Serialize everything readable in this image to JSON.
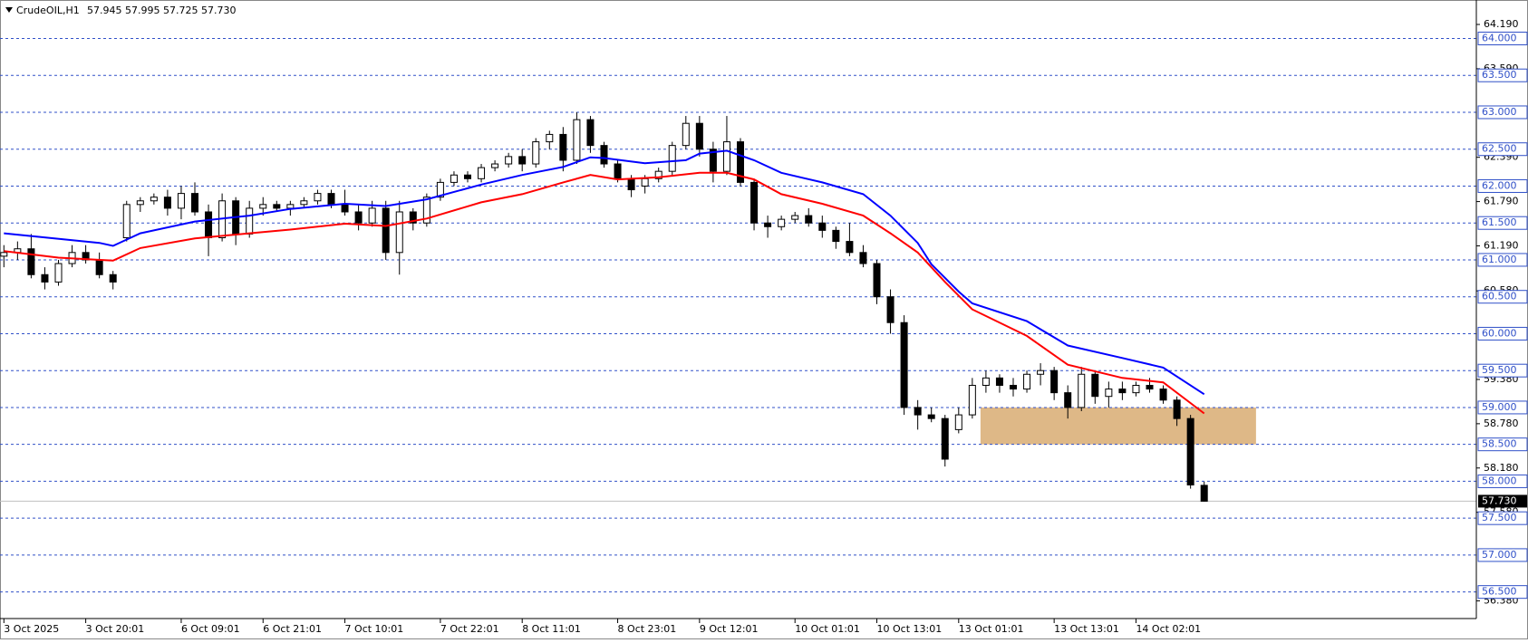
{
  "chart_data": {
    "type": "candlestick",
    "title": "CrudeOIL,H1",
    "info": "57.945 57.995 57.725 57.730",
    "ylim": [
      56.14,
      64.46
    ],
    "yticks": [
      {
        "value": 64.19,
        "label": "64.190"
      },
      {
        "value": 63.59,
        "label": "63.590"
      },
      {
        "value": 62.39,
        "label": "62.390"
      },
      {
        "value": 61.79,
        "label": "61.790"
      },
      {
        "value": 61.19,
        "label": "61.190"
      },
      {
        "value": 60.58,
        "label": "60.580"
      },
      {
        "value": 59.38,
        "label": "59.380"
      },
      {
        "value": 58.78,
        "label": "58.780"
      },
      {
        "value": 58.18,
        "label": "58.180"
      },
      {
        "value": 57.58,
        "label": "57.580"
      },
      {
        "value": 56.38,
        "label": "56.380"
      }
    ],
    "hlines": [
      {
        "value": 64,
        "label": "64.000"
      },
      {
        "value": 63.5,
        "label": "63.500"
      },
      {
        "value": 63,
        "label": "63.000"
      },
      {
        "value": 62.5,
        "label": "62.500"
      },
      {
        "value": 62,
        "label": "62.000"
      },
      {
        "value": 61.5,
        "label": "61.500"
      },
      {
        "value": 61,
        "label": "61.000"
      },
      {
        "value": 60.5,
        "label": "60.500"
      },
      {
        "value": 60,
        "label": "60.000"
      },
      {
        "value": 59.5,
        "label": "59.500"
      },
      {
        "value": 59,
        "label": "59.000"
      },
      {
        "value": 58.5,
        "label": "58.500"
      },
      {
        "value": 58,
        "label": "58.000"
      },
      {
        "value": 57.5,
        "label": "57.500"
      },
      {
        "value": 57,
        "label": "57.000"
      },
      {
        "value": 56.5,
        "label": "56.500"
      }
    ],
    "hline_color": "#3050c8",
    "current": {
      "value": 57.73,
      "label": "57.730"
    },
    "zone": {
      "x": [
        71.6,
        91.8
      ],
      "y": [
        58.5,
        59.0
      ],
      "color": "#deb887"
    },
    "categories": [
      "3 Oct 2025",
      null,
      null,
      null,
      null,
      null,
      "3 Oct 20:01",
      null,
      null,
      null,
      null,
      null,
      null,
      "6 Oct 09:01",
      null,
      null,
      null,
      null,
      null,
      "6 Oct 21:01",
      null,
      null,
      null,
      null,
      null,
      "7 Oct 10:01",
      null,
      null,
      null,
      null,
      null,
      null,
      "7 Oct 22:01",
      null,
      null,
      null,
      null,
      null,
      "8 Oct 11:01",
      null,
      null,
      null,
      null,
      null,
      null,
      "8 Oct 23:01",
      null,
      null,
      null,
      null,
      null,
      "9 Oct 12:01",
      null,
      null,
      null,
      null,
      null,
      null,
      "10 Oct 01:01",
      null,
      null,
      null,
      null,
      null,
      "10 Oct 13:01",
      null,
      null,
      null,
      null,
      null,
      "13 Oct 01:01",
      null,
      null,
      null,
      null,
      null,
      null,
      "13 Oct 13:01",
      null,
      null,
      null,
      null,
      null,
      "14 Oct 02:01",
      null,
      null,
      null,
      null,
      null
    ],
    "candles": [
      [
        61.05,
        61.2,
        60.9,
        61.1
      ],
      [
        61.1,
        61.25,
        61.0,
        61.15
      ],
      [
        61.15,
        61.35,
        60.75,
        60.8
      ],
      [
        60.8,
        60.9,
        60.6,
        60.7
      ],
      [
        60.7,
        61.0,
        60.65,
        60.95
      ],
      [
        60.95,
        61.2,
        60.9,
        61.1
      ],
      [
        61.1,
        61.2,
        60.95,
        61.0
      ],
      [
        61.0,
        61.1,
        60.75,
        60.8
      ],
      [
        60.8,
        60.85,
        60.6,
        60.7
      ],
      [
        61.3,
        61.8,
        61.25,
        61.75
      ],
      [
        61.75,
        61.85,
        61.65,
        61.8
      ],
      [
        61.8,
        61.9,
        61.75,
        61.85
      ],
      [
        61.85,
        61.95,
        61.6,
        61.7
      ],
      [
        61.7,
        62.0,
        61.55,
        61.9
      ],
      [
        61.9,
        62.05,
        61.6,
        61.65
      ],
      [
        61.65,
        61.75,
        61.05,
        61.3
      ],
      [
        61.3,
        61.9,
        61.25,
        61.8
      ],
      [
        61.8,
        61.85,
        61.2,
        61.35
      ],
      [
        61.35,
        61.8,
        61.3,
        61.7
      ],
      [
        61.7,
        61.85,
        61.6,
        61.75
      ],
      [
        61.75,
        61.8,
        61.65,
        61.7
      ],
      [
        61.7,
        61.8,
        61.6,
        61.75
      ],
      [
        61.75,
        61.85,
        61.7,
        61.8
      ],
      [
        61.8,
        61.95,
        61.75,
        61.9
      ],
      [
        61.9,
        61.95,
        61.7,
        61.75
      ],
      [
        61.75,
        61.95,
        61.6,
        61.65
      ],
      [
        61.65,
        61.75,
        61.4,
        61.5
      ],
      [
        61.5,
        61.8,
        61.45,
        61.7
      ],
      [
        61.7,
        61.8,
        61.0,
        61.1
      ],
      [
        61.1,
        61.8,
        60.8,
        61.65
      ],
      [
        61.65,
        61.7,
        61.4,
        61.5
      ],
      [
        61.5,
        61.9,
        61.45,
        61.85
      ],
      [
        61.85,
        62.1,
        61.8,
        62.05
      ],
      [
        62.05,
        62.2,
        62.0,
        62.15
      ],
      [
        62.15,
        62.2,
        62.05,
        62.1
      ],
      [
        62.1,
        62.3,
        62.05,
        62.25
      ],
      [
        62.25,
        62.35,
        62.2,
        62.3
      ],
      [
        62.3,
        62.45,
        62.25,
        62.4
      ],
      [
        62.4,
        62.5,
        62.2,
        62.3
      ],
      [
        62.3,
        62.65,
        62.25,
        62.6
      ],
      [
        62.6,
        62.75,
        62.5,
        62.7
      ],
      [
        62.7,
        62.8,
        62.2,
        62.35
      ],
      [
        62.35,
        63.0,
        62.3,
        62.9
      ],
      [
        62.9,
        62.95,
        62.45,
        62.55
      ],
      [
        62.55,
        62.6,
        62.25,
        62.3
      ],
      [
        62.3,
        62.35,
        62.05,
        62.1
      ],
      [
        62.1,
        62.15,
        61.85,
        61.95
      ],
      [
        62.0,
        62.15,
        61.9,
        62.1
      ],
      [
        62.1,
        62.25,
        62.05,
        62.2
      ],
      [
        62.2,
        62.6,
        62.15,
        62.55
      ],
      [
        62.55,
        62.95,
        62.5,
        62.85
      ],
      [
        62.85,
        62.95,
        62.4,
        62.5
      ],
      [
        62.5,
        62.6,
        62.05,
        62.2
      ],
      [
        62.2,
        62.95,
        62.15,
        62.6
      ],
      [
        62.6,
        62.65,
        62.0,
        62.05
      ],
      [
        62.05,
        62.1,
        61.4,
        61.5
      ],
      [
        61.5,
        61.6,
        61.3,
        61.45
      ],
      [
        61.45,
        61.6,
        61.4,
        61.55
      ],
      [
        61.55,
        61.65,
        61.5,
        61.6
      ],
      [
        61.6,
        61.7,
        61.45,
        61.5
      ],
      [
        61.5,
        61.6,
        61.3,
        61.4
      ],
      [
        61.4,
        61.45,
        61.15,
        61.25
      ],
      [
        61.25,
        61.5,
        61.05,
        61.1
      ],
      [
        61.1,
        61.2,
        60.9,
        60.95
      ],
      [
        60.95,
        61.0,
        60.4,
        60.5
      ],
      [
        60.5,
        60.6,
        60.0,
        60.15
      ],
      [
        60.15,
        60.25,
        58.9,
        59.0
      ],
      [
        59.0,
        59.1,
        58.7,
        58.9
      ],
      [
        58.9,
        59.0,
        58.8,
        58.85
      ],
      [
        58.85,
        58.9,
        58.2,
        58.3
      ],
      [
        58.7,
        59.0,
        58.65,
        58.9
      ],
      [
        58.9,
        59.4,
        58.85,
        59.3
      ],
      [
        59.3,
        59.5,
        59.2,
        59.4
      ],
      [
        59.4,
        59.45,
        59.2,
        59.3
      ],
      [
        59.3,
        59.4,
        59.15,
        59.25
      ],
      [
        59.25,
        59.5,
        59.2,
        59.45
      ],
      [
        59.45,
        59.6,
        59.3,
        59.5
      ],
      [
        59.5,
        59.55,
        59.1,
        59.2
      ],
      [
        59.2,
        59.3,
        58.85,
        59.0
      ],
      [
        59.0,
        59.55,
        58.95,
        59.45
      ],
      [
        59.45,
        59.5,
        59.05,
        59.15
      ],
      [
        59.15,
        59.35,
        59.0,
        59.25
      ],
      [
        59.25,
        59.35,
        59.1,
        59.2
      ],
      [
        59.2,
        59.35,
        59.15,
        59.3
      ],
      [
        59.3,
        59.4,
        59.2,
        59.25
      ],
      [
        59.25,
        59.3,
        59.05,
        59.1
      ],
      [
        59.1,
        59.15,
        58.75,
        58.85
      ],
      [
        58.85,
        58.9,
        57.9,
        57.95
      ],
      [
        57.945,
        57.995,
        57.725,
        57.73
      ]
    ],
    "ma": [
      {
        "color": "#0000ff",
        "x": [
          0,
          7,
          8,
          10,
          14,
          18,
          21,
          25,
          28,
          31,
          35,
          38,
          41,
          43,
          44,
          47,
          50,
          51,
          53,
          55,
          57,
          60,
          63,
          65,
          67,
          68,
          70,
          71,
          75,
          78,
          82,
          85,
          88
        ],
        "values": [
          61.36,
          61.23,
          61.19,
          61.36,
          61.52,
          61.6,
          61.69,
          61.76,
          61.73,
          61.82,
          62.02,
          62.15,
          62.26,
          62.39,
          62.38,
          62.31,
          62.35,
          62.44,
          62.48,
          62.35,
          62.18,
          62.05,
          61.89,
          61.6,
          61.23,
          60.94,
          60.57,
          60.41,
          60.17,
          59.84,
          59.67,
          59.54,
          59.18
        ]
      },
      {
        "color": "#ff0000",
        "x": [
          0,
          4,
          8,
          10,
          14,
          18,
          21,
          25,
          28,
          31,
          35,
          38,
          41,
          43,
          45,
          48,
          51,
          53,
          55,
          57,
          60,
          63,
          65,
          67,
          69,
          71,
          75,
          78,
          82,
          85,
          88
        ],
        "values": [
          61.12,
          61.03,
          60.99,
          61.16,
          61.29,
          61.36,
          61.41,
          61.49,
          61.46,
          61.56,
          61.78,
          61.89,
          62.05,
          62.15,
          62.09,
          62.12,
          62.18,
          62.18,
          62.09,
          61.89,
          61.76,
          61.6,
          61.36,
          61.1,
          60.7,
          60.33,
          59.97,
          59.58,
          59.4,
          59.34,
          58.92
        ]
      }
    ]
  }
}
